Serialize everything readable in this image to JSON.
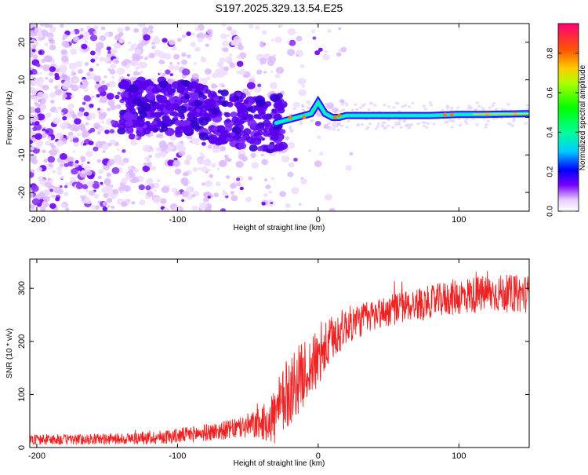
{
  "title": "S197.2025.329.13.54.E25",
  "colors": {
    "snr_line": "#ee2222",
    "axis": "#000000",
    "spectrogram_low": "#cc99ff",
    "spectrogram_mid": "#5500ff",
    "spectrogram_ridge": "#00ffff"
  },
  "chart_data": [
    {
      "type": "heatmap",
      "title": "",
      "xlabel": "Height of straight line (km)",
      "ylabel": "Frequency (Hz)",
      "xlim": [
        -205,
        150
      ],
      "ylim": [
        -25,
        25
      ],
      "xticks": [
        -200,
        -100,
        0,
        100
      ],
      "yticks": [
        -20,
        -10,
        0,
        10,
        20
      ],
      "colorbar": {
        "label": "Normalized spectral amplitude",
        "range": [
          0.0,
          0.95
        ],
        "ticks": [
          0.0,
          0.2,
          0.4,
          0.6,
          0.8
        ]
      },
      "ridge": {
        "description_points_x": [
          -110,
          -90,
          -70,
          -50,
          -35,
          -25,
          -15,
          -5,
          0,
          5,
          10,
          15,
          20,
          50,
          80,
          100,
          120,
          150
        ],
        "frequency_hz": [
          3,
          2,
          0,
          -1,
          -2,
          -1,
          0,
          1,
          4,
          1,
          0,
          0,
          0.5,
          0.5,
          0.5,
          0.8,
          0.8,
          1
        ]
      }
    },
    {
      "type": "line",
      "title": "",
      "xlabel": "Height of straight line (km)",
      "ylabel": "SNR (10 * v/v)",
      "xlim": [
        -205,
        150
      ],
      "ylim": [
        0,
        355
      ],
      "xticks": [
        -200,
        -100,
        0,
        100
      ],
      "yticks": [
        0,
        100,
        200,
        300
      ],
      "series": [
        {
          "name": "SNR",
          "x": [
            -205,
            -180,
            -150,
            -120,
            -100,
            -80,
            -60,
            -40,
            -30,
            -20,
            -10,
            0,
            10,
            20,
            40,
            60,
            80,
            100,
            120,
            150
          ],
          "trend": [
            15,
            15,
            16,
            18,
            22,
            28,
            35,
            45,
            60,
            110,
            140,
            165,
            205,
            230,
            250,
            265,
            275,
            285,
            290,
            290
          ],
          "spread": [
            10,
            10,
            10,
            12,
            14,
            16,
            18,
            30,
            60,
            70,
            60,
            55,
            45,
            35,
            30,
            30,
            30,
            35,
            35,
            35
          ]
        }
      ]
    }
  ]
}
